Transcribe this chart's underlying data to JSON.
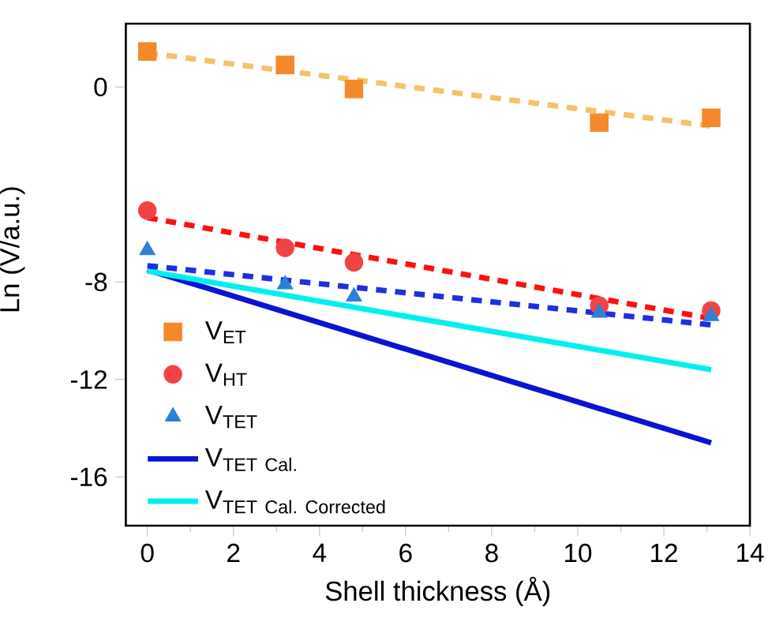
{
  "chart_data": {
    "type": "scatter",
    "xlabel": "Shell thickness (Å)",
    "ylabel": "Ln (V/a.u.)",
    "xlim": [
      -0.5,
      14
    ],
    "ylim": [
      -18,
      2.6
    ],
    "xticks": [
      0,
      2,
      4,
      6,
      8,
      10,
      12,
      14
    ],
    "yticks": [
      -16,
      -12,
      -8,
      0
    ],
    "legend": "bottom left",
    "series": [
      {
        "name": "\\mathrm{V}_{\\mathrm{ET}}",
        "color": "#f4892b",
        "marker": "square",
        "x": [
          0,
          3.2,
          4.8,
          10.5,
          13.1
        ],
        "values": [
          1.46,
          0.91,
          -0.08,
          -1.46,
          -1.26
        ]
      },
      {
        "name": "\\mathrm{V}_{\\mathrm{HT}}",
        "color": "#f04444",
        "marker": "circle",
        "x": [
          0,
          3.2,
          4.8,
          10.5,
          13.1
        ],
        "values": [
          -5.07,
          -6.6,
          -7.2,
          -8.97,
          -9.17
        ]
      },
      {
        "name": "\\mathrm{V}_{\\mathrm{TET}}",
        "color": "#2f7fd8",
        "marker": "triangle",
        "x": [
          0,
          3.2,
          4.8,
          10.5,
          13.1
        ],
        "values": [
          -6.7,
          -8.1,
          -8.6,
          -9.27,
          -9.4
        ]
      },
      {
        "type": "line",
        "name": "\\mathrm{V}_{\\mathrm{TET\\ Cal.}}",
        "color": "#0a14d2",
        "line_style": "solid",
        "x": [
          0,
          13.1
        ],
        "values": [
          -7.5,
          -14.6
        ]
      },
      {
        "type": "line",
        "name": "\\mathrm{V}_{\\mathrm{TET\\ Cal.\\ Corrected}}",
        "color": "#00f0f0",
        "line_style": "solid",
        "x": [
          0,
          13.1
        ],
        "values": [
          -7.55,
          -11.6
        ]
      },
      {
        "type": "line",
        "color": "#f5c26b",
        "line_style": "dashed",
        "x": [
          0,
          13.1
        ],
        "values": [
          1.4,
          -1.6
        ]
      },
      {
        "type": "line",
        "color": "#ff1010",
        "line_style": "dashed",
        "x": [
          0,
          13.1
        ],
        "values": [
          -5.36,
          -9.5
        ]
      },
      {
        "type": "line",
        "color": "#1f2fe0",
        "line_style": "dashed",
        "x": [
          0,
          13.1
        ],
        "values": [
          -7.33,
          -9.76
        ]
      }
    ]
  }
}
